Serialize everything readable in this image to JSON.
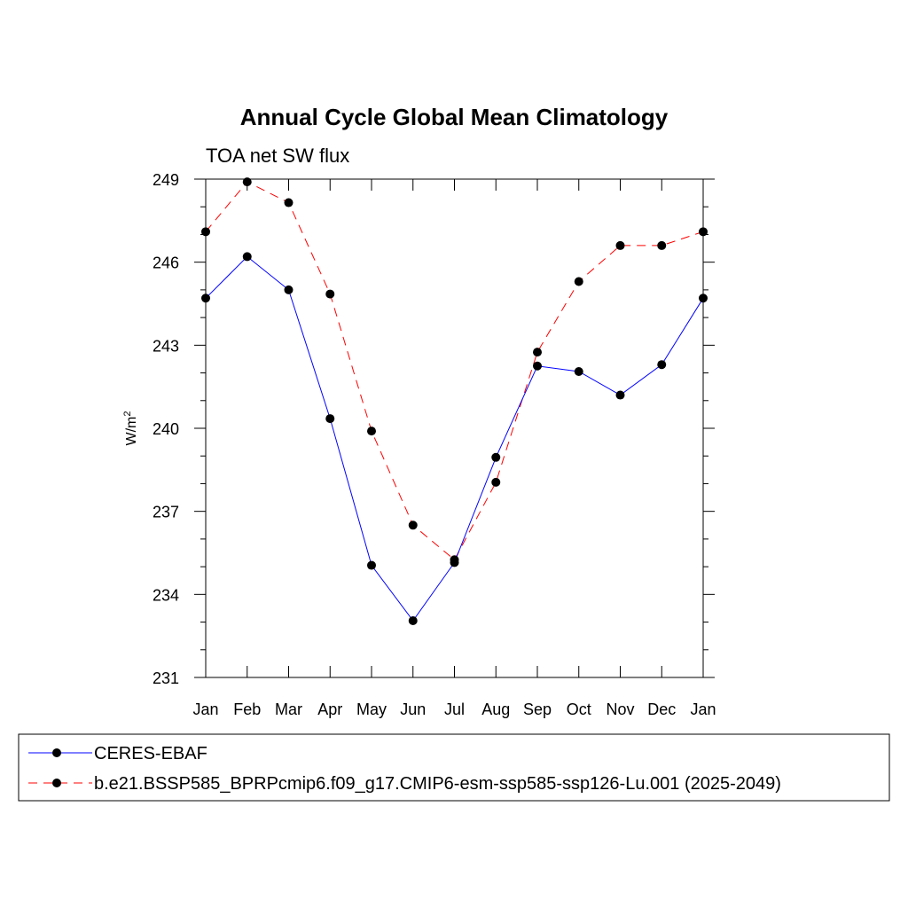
{
  "chart_data": {
    "type": "line",
    "title": "Annual Cycle Global Mean Climatology",
    "subtitle": "TOA net SW flux",
    "ylabel_base": "W/m",
    "ylabel_sup": "2",
    "categories": [
      "Jan",
      "Feb",
      "Mar",
      "Apr",
      "May",
      "Jun",
      "Jul",
      "Aug",
      "Sep",
      "Oct",
      "Nov",
      "Dec",
      "Jan"
    ],
    "ylim": [
      231,
      249
    ],
    "yticks": [
      "231",
      "234",
      "237",
      "240",
      "243",
      "246",
      "249"
    ],
    "grid": false,
    "legend_position": "bottom",
    "series": [
      {
        "name": "CERES-EBAF",
        "color": "#0000ff",
        "dash": "solid",
        "values": [
          244.7,
          246.2,
          245.0,
          240.35,
          235.05,
          233.05,
          235.15,
          238.95,
          242.25,
          242.05,
          241.2,
          242.3,
          244.7
        ]
      },
      {
        "name": "b.e21.BSSP585_BPRPcmip6.f09_g17.CMIP6-esm-ssp585-ssp126-Lu.001 (2025-2049)",
        "color": "#ff0000",
        "dash": "dashed",
        "values": [
          247.1,
          248.9,
          248.15,
          244.85,
          239.9,
          236.5,
          235.25,
          238.05,
          242.75,
          245.3,
          246.6,
          246.6,
          247.1
        ]
      }
    ]
  }
}
